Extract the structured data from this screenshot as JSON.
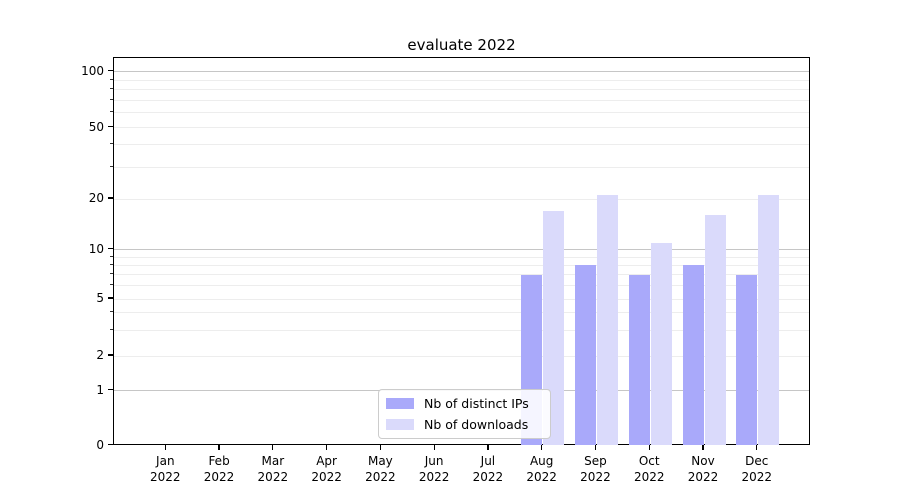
{
  "chart_data": {
    "type": "bar",
    "title": "evaluate 2022",
    "categories": [
      "Jan 2022",
      "Feb 2022",
      "Mar 2022",
      "Apr 2022",
      "May 2022",
      "Jun 2022",
      "Jul 2022",
      "Aug 2022",
      "Sep 2022",
      "Oct 2022",
      "Nov 2022",
      "Dec 2022"
    ],
    "series": [
      {
        "name": "Nb of distinct IPs",
        "color": "#a9a9fa",
        "values": [
          0,
          0,
          0,
          0,
          0,
          0,
          0,
          7,
          8,
          7,
          8,
          7
        ]
      },
      {
        "name": "Nb of downloads",
        "color": "#dadafb",
        "values": [
          0,
          0,
          0,
          0,
          0,
          0,
          0,
          17,
          21,
          11,
          16,
          21
        ]
      }
    ],
    "yscale": "symlog",
    "ylim": [
      0,
      120
    ],
    "ytick_values": [
      0,
      1,
      2,
      5,
      10,
      20,
      50,
      100
    ],
    "ytick_labels": [
      "0",
      "1",
      "2",
      "5",
      "10",
      "20",
      "50",
      "100"
    ],
    "major_grid_values": [
      1,
      10,
      100
    ],
    "minor_grid_values": [
      2,
      3,
      4,
      5,
      6,
      7,
      8,
      9,
      20,
      30,
      40,
      50,
      60,
      70,
      80,
      90
    ],
    "minor_tick_values": [
      3,
      4,
      6,
      7,
      8,
      9,
      30,
      40,
      60,
      70,
      80,
      90
    ],
    "grid": "horizontal",
    "legend_position": "lower center inside",
    "colors": {
      "bar_distinct_ips": "#a9a9fa",
      "bar_downloads": "#dadafb",
      "major_grid": "#c6c6c6",
      "minor_grid": "#ededed",
      "spine": "#000000",
      "legend_border": "#cccccc"
    }
  }
}
